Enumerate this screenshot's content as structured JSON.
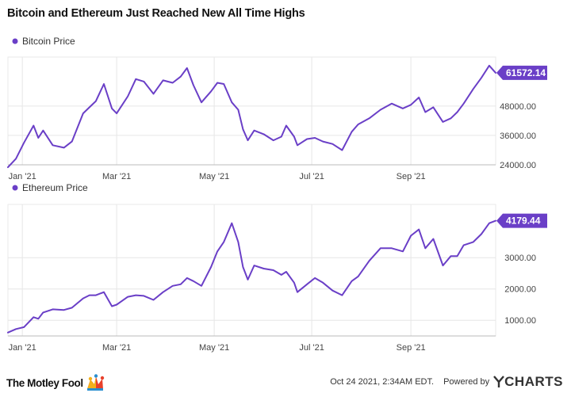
{
  "title": "Bitcoin and Ethereum Just Reached New All Time Highs",
  "colors": {
    "line": "#6a3fc7",
    "badge": "#6a3fc7",
    "grid": "#e6e6e6",
    "axis": "#bbbbbb"
  },
  "chart_data": [
    {
      "type": "line",
      "legend": "Bitcoin Price",
      "last_value_label": "61572.14",
      "x_ticks": [
        "Jan '21",
        "Mar '21",
        "May '21",
        "Jul '21",
        "Sep '21"
      ],
      "x_range": [
        "2020-12-23",
        "2021-10-24"
      ],
      "y_ticks": [
        "36000.00",
        "48000.00",
        "24000.00"
      ],
      "ylim": [
        24000,
        68000
      ],
      "grid": true,
      "legend_position": "top-left",
      "series": [
        {
          "name": "Bitcoin Price",
          "x": [
            "2020-12-23",
            "2020-12-28",
            "2021-01-02",
            "2021-01-08",
            "2021-01-11",
            "2021-01-14",
            "2021-01-20",
            "2021-01-27",
            "2021-02-01",
            "2021-02-08",
            "2021-02-12",
            "2021-02-16",
            "2021-02-21",
            "2021-02-26",
            "2021-03-01",
            "2021-03-08",
            "2021-03-13",
            "2021-03-18",
            "2021-03-24",
            "2021-03-30",
            "2021-04-05",
            "2021-04-10",
            "2021-04-14",
            "2021-04-18",
            "2021-04-23",
            "2021-04-29",
            "2021-05-03",
            "2021-05-07",
            "2021-05-12",
            "2021-05-16",
            "2021-05-19",
            "2021-05-22",
            "2021-05-26",
            "2021-06-01",
            "2021-06-07",
            "2021-06-12",
            "2021-06-15",
            "2021-06-20",
            "2021-06-22",
            "2021-06-28",
            "2021-07-03",
            "2021-07-08",
            "2021-07-14",
            "2021-07-20",
            "2021-07-26",
            "2021-07-30",
            "2021-08-06",
            "2021-08-13",
            "2021-08-20",
            "2021-08-27",
            "2021-09-01",
            "2021-09-06",
            "2021-09-10",
            "2021-09-15",
            "2021-09-21",
            "2021-09-26",
            "2021-09-30",
            "2021-10-04",
            "2021-10-10",
            "2021-10-15",
            "2021-10-20",
            "2021-10-24"
          ],
          "values": [
            23000,
            26500,
            33000,
            40000,
            35000,
            38000,
            32000,
            31000,
            33500,
            45000,
            47500,
            50000,
            57000,
            47000,
            45000,
            52000,
            59000,
            58000,
            53000,
            58500,
            57500,
            60000,
            63500,
            56500,
            49500,
            54000,
            57500,
            57000,
            49500,
            46500,
            38500,
            34000,
            38000,
            36500,
            34000,
            35500,
            40000,
            35500,
            32000,
            34500,
            35000,
            33500,
            32500,
            30000,
            37500,
            40500,
            43000,
            46500,
            49000,
            47000,
            48500,
            51500,
            45500,
            47500,
            41500,
            43000,
            45500,
            49000,
            55000,
            59500,
            64500,
            61572.14
          ]
        }
      ]
    },
    {
      "type": "line",
      "legend": "Ethereum Price",
      "last_value_label": "4179.44",
      "x_ticks": [
        "Jan '21",
        "Mar '21",
        "May '21",
        "Jul '21",
        "Sep '21"
      ],
      "x_range": [
        "2020-12-23",
        "2021-10-24"
      ],
      "y_ticks": [
        "3000.00",
        "2000.00",
        "1000.00"
      ],
      "ylim": [
        500,
        4700
      ],
      "grid": true,
      "legend_position": "top-left",
      "series": [
        {
          "name": "Ethereum Price",
          "x": [
            "2020-12-23",
            "2020-12-28",
            "2021-01-02",
            "2021-01-08",
            "2021-01-11",
            "2021-01-14",
            "2021-01-20",
            "2021-01-27",
            "2021-02-01",
            "2021-02-08",
            "2021-02-12",
            "2021-02-16",
            "2021-02-21",
            "2021-02-26",
            "2021-03-01",
            "2021-03-08",
            "2021-03-13",
            "2021-03-18",
            "2021-03-24",
            "2021-03-30",
            "2021-04-05",
            "2021-04-10",
            "2021-04-14",
            "2021-04-18",
            "2021-04-23",
            "2021-04-29",
            "2021-05-03",
            "2021-05-07",
            "2021-05-12",
            "2021-05-16",
            "2021-05-19",
            "2021-05-22",
            "2021-05-26",
            "2021-06-01",
            "2021-06-07",
            "2021-06-12",
            "2021-06-15",
            "2021-06-20",
            "2021-06-22",
            "2021-06-28",
            "2021-07-03",
            "2021-07-08",
            "2021-07-14",
            "2021-07-20",
            "2021-07-26",
            "2021-07-30",
            "2021-08-06",
            "2021-08-13",
            "2021-08-20",
            "2021-08-27",
            "2021-09-01",
            "2021-09-06",
            "2021-09-10",
            "2021-09-15",
            "2021-09-21",
            "2021-09-26",
            "2021-09-30",
            "2021-10-04",
            "2021-10-10",
            "2021-10-15",
            "2021-10-20",
            "2021-10-24"
          ],
          "values": [
            610,
            720,
            780,
            1100,
            1050,
            1250,
            1350,
            1330,
            1400,
            1700,
            1800,
            1800,
            1900,
            1450,
            1500,
            1750,
            1800,
            1780,
            1650,
            1900,
            2100,
            2150,
            2350,
            2250,
            2100,
            2700,
            3200,
            3500,
            4100,
            3500,
            2700,
            2300,
            2750,
            2650,
            2600,
            2450,
            2550,
            2200,
            1900,
            2150,
            2350,
            2200,
            1950,
            1800,
            2250,
            2400,
            2900,
            3300,
            3300,
            3200,
            3700,
            3900,
            3300,
            3600,
            2750,
            3050,
            3050,
            3400,
            3500,
            3750,
            4100,
            4179.44
          ]
        }
      ]
    }
  ],
  "footer": {
    "brand": "The Motley Fool",
    "timestamp": "Oct 24 2021, 2:34AM EDT.",
    "powered_by": "Powered by",
    "ycharts": "CHARTS"
  }
}
